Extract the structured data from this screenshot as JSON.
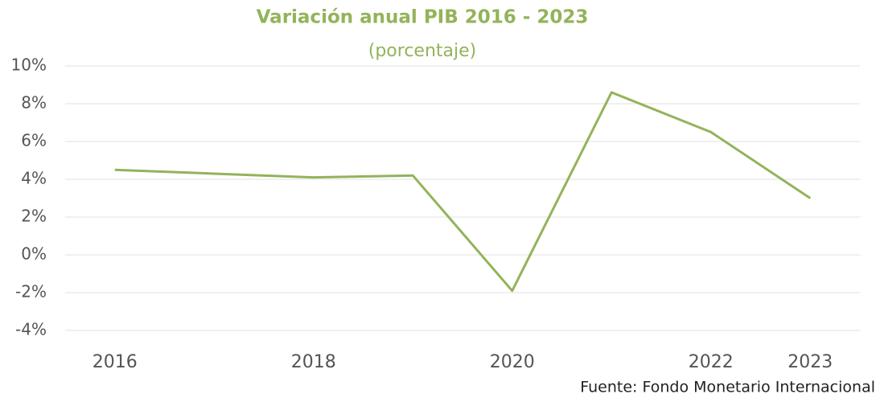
{
  "chart_data": {
    "type": "line",
    "title": "Variación anual PIB 2016 - 2023",
    "subtitle": "(porcentaje)",
    "source": "Fuente: Fondo Monetario Internacional",
    "categories": [
      "2016",
      null,
      "2018",
      null,
      "2020",
      null,
      "2022",
      "2023"
    ],
    "series": [
      {
        "name": "PIB",
        "color": "#93b35a",
        "values": [
          4.5,
          4.3,
          4.1,
          4.2,
          -1.9,
          8.6,
          6.5,
          3.0
        ]
      }
    ],
    "ylim": [
      -4,
      10
    ],
    "yticks": [
      {
        "value": -4,
        "label": "-4%"
      },
      {
        "value": -2,
        "label": "-2%"
      },
      {
        "value": 0,
        "label": "0%"
      },
      {
        "value": 2,
        "label": "2%"
      },
      {
        "value": 4,
        "label": "4%"
      },
      {
        "value": 6,
        "label": "6%"
      },
      {
        "value": 8,
        "label": "8%"
      },
      {
        "value": 10,
        "label": "10%"
      }
    ],
    "grid": true
  }
}
